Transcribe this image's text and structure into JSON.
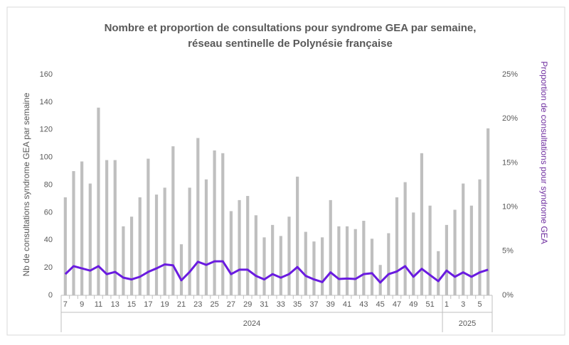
{
  "chart_data": {
    "type": "bar",
    "title": "Nombre et proportion de consultations pour syndrome GEA par semaine,",
    "subtitle": "réseau sentinelle de Polynésie française",
    "y_label": "Nb de consultations syndrome GEA par semaine",
    "y2_label": "Proportion de consultations pour syndrome GEA",
    "y2_label_color": "#7030a0",
    "categories": [
      "7",
      null,
      "9",
      null,
      "11",
      null,
      "13",
      null,
      "15",
      null,
      "17",
      null,
      "19",
      null,
      "21",
      null,
      "23",
      null,
      "25",
      null,
      "27",
      null,
      "29",
      null,
      "31",
      null,
      "33",
      null,
      "35",
      null,
      "37",
      null,
      "39",
      null,
      "41",
      null,
      "43",
      null,
      "45",
      null,
      "47",
      null,
      "49",
      null,
      "51",
      null,
      "1",
      null,
      "3",
      null,
      "5",
      null
    ],
    "x_groups": [
      {
        "label": "2024",
        "span": 46
      },
      {
        "label": "2025",
        "span": 6
      }
    ],
    "series": [
      {
        "type": "bar",
        "color": "#bfbfbf",
        "values": [
          71,
          90,
          97,
          81,
          136,
          98,
          98,
          50,
          57,
          71,
          99,
          73,
          78,
          108,
          37,
          78,
          114,
          84,
          105,
          103,
          61,
          69,
          72,
          58,
          42,
          51,
          43,
          57,
          86,
          46,
          39,
          42,
          69,
          50,
          50,
          48,
          54,
          41,
          22,
          45,
          71,
          82,
          60,
          103,
          65,
          32,
          51,
          62,
          81,
          65,
          84,
          121
        ]
      },
      {
        "type": "line",
        "axis": "y2",
        "color": "#6a1be0",
        "values": [
          2.4,
          3.3,
          3.05,
          2.8,
          3.3,
          2.4,
          2.65,
          2.0,
          1.8,
          2.1,
          2.65,
          3.05,
          3.5,
          3.4,
          1.7,
          2.65,
          3.8,
          3.45,
          3.85,
          3.85,
          2.4,
          2.9,
          2.9,
          2.2,
          1.8,
          2.4,
          2.0,
          2.4,
          3.2,
          2.2,
          1.8,
          1.5,
          2.6,
          1.85,
          1.9,
          1.85,
          2.4,
          2.5,
          1.45,
          2.4,
          2.7,
          3.3,
          2.1,
          3.0,
          2.3,
          1.6,
          2.8,
          2.1,
          2.6,
          2.1,
          2.6,
          2.9
        ]
      }
    ],
    "ylim": [
      0,
      160
    ],
    "yticks": [
      0,
      20,
      40,
      60,
      80,
      100,
      120,
      140,
      160
    ],
    "y2lim": [
      0,
      25
    ],
    "y2ticks": [
      {
        "value": 0,
        "label": "0%"
      },
      {
        "value": 5,
        "label": "5%"
      },
      {
        "value": 10,
        "label": "10%"
      },
      {
        "value": 15,
        "label": "15%"
      },
      {
        "value": 20,
        "label": "20%"
      },
      {
        "value": 25,
        "label": "25%"
      }
    ],
    "grid": false
  }
}
